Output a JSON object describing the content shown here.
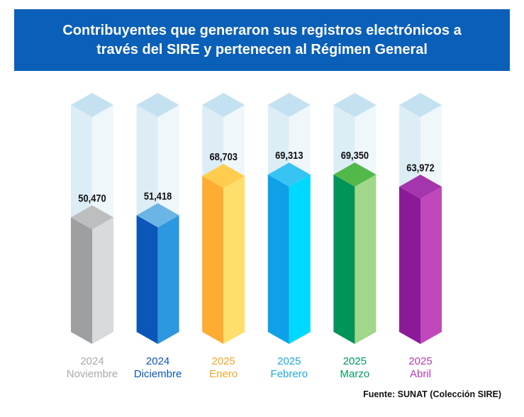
{
  "title": "Contribuyentes que generaron sus registros electrónicos a\ntravés del SIRE y pertenecen al Régimen General",
  "source": "Fuente: SUNAT (Colección SIRE)",
  "chart_data": {
    "type": "bar",
    "title": "Contribuyentes que generaron sus registros electrónicos a través del SIRE y pertenecen al Régimen General",
    "categories": [
      {
        "year": "2024",
        "month": "Noviembre"
      },
      {
        "year": "2024",
        "month": "Diciembre"
      },
      {
        "year": "2025",
        "month": "Enero"
      },
      {
        "year": "2025",
        "month": "Febrero"
      },
      {
        "year": "2025",
        "month": "Marzo"
      },
      {
        "year": "2025",
        "month": "Abril"
      }
    ],
    "values": [
      50470,
      51418,
      68703,
      69313,
      69350,
      63972
    ],
    "value_labels": [
      "50,470",
      "51,418",
      "68,703",
      "69,313",
      "69,350",
      "63,972"
    ],
    "colors": [
      {
        "front": "#9E9FA1",
        "side": "#D9DADB",
        "top": "#BDBEBF",
        "label": "#A7A9AC"
      },
      {
        "front": "#0B57B8",
        "side": "#2C98E0",
        "top": "#6BB5E6",
        "label": "#0B57B8"
      },
      {
        "front": "#FFAC33",
        "side": "#FFDF6B",
        "top": "#FFCC50",
        "label": "#F5A623"
      },
      {
        "front": "#0FA0E8",
        "side": "#00D9FF",
        "top": "#38C4F3",
        "label": "#1BA9DF"
      },
      {
        "front": "#009457",
        "side": "#A0D78A",
        "top": "#52B84A",
        "label": "#009A5A"
      },
      {
        "front": "#8B1A99",
        "side": "#C148BC",
        "top": "#A535AC",
        "label": "#B53CB5"
      }
    ],
    "ghost": {
      "front": "#DCEDF6",
      "side": "#EFF7FB",
      "top": "#C4E1F1"
    },
    "xlabel": "",
    "ylabel": ""
  }
}
